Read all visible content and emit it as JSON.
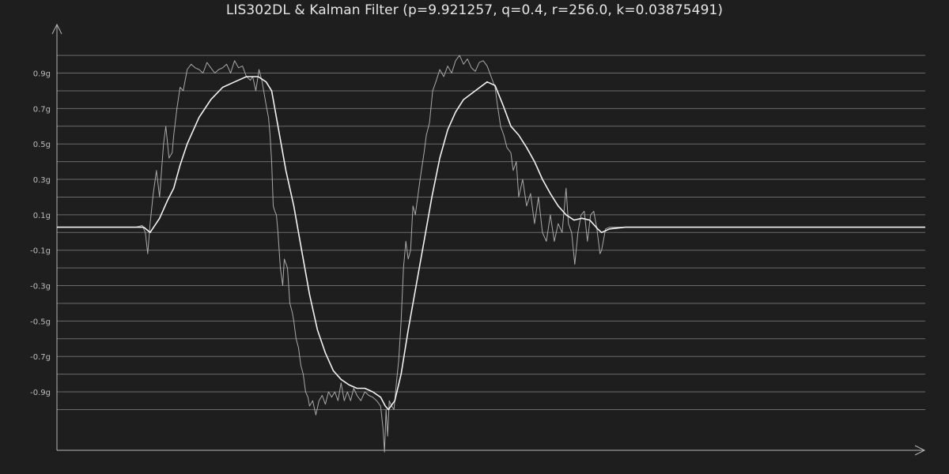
{
  "chart_data": {
    "type": "line",
    "title": "LIS302DL & Kalman Filter (p=9.921257, q=0.4, r=256.0, k=0.03875491)",
    "xlabel": "",
    "ylabel": "",
    "grid": true,
    "ylim": [
      -1.23,
      1.17
    ],
    "y_ticks": [
      {
        "value": 0.9,
        "label": "0.9g"
      },
      {
        "value": 0.7,
        "label": "0.7g"
      },
      {
        "value": 0.5,
        "label": "0.5g"
      },
      {
        "value": 0.3,
        "label": "0.3g"
      },
      {
        "value": 0.1,
        "label": "0.1g"
      },
      {
        "value": -0.1,
        "label": "-0.1g"
      },
      {
        "value": -0.3,
        "label": "-0.3g"
      },
      {
        "value": -0.5,
        "label": "-0.5g"
      },
      {
        "value": -0.7,
        "label": "-0.7g"
      },
      {
        "value": -0.9,
        "label": "-0.9g"
      }
    ],
    "gridlines": [
      1.0,
      0.9,
      0.8,
      0.7,
      0.6,
      0.5,
      0.4,
      0.3,
      0.2,
      0.1,
      0.0,
      -0.1,
      -0.2,
      -0.3,
      -0.4,
      -0.5,
      -0.6,
      -0.7,
      -0.8,
      -0.9,
      -1.0
    ],
    "x_range": [
      0,
      1100
    ],
    "series": [
      {
        "role": "raw",
        "color": "#a8a8a8",
        "points": [
          [
            0,
            0.03
          ],
          [
            100,
            0.03
          ],
          [
            108,
            0.04
          ],
          [
            112,
            0.0
          ],
          [
            115,
            -0.12
          ],
          [
            118,
            0.05
          ],
          [
            122,
            0.22
          ],
          [
            126,
            0.35
          ],
          [
            130,
            0.2
          ],
          [
            135,
            0.5
          ],
          [
            138,
            0.6
          ],
          [
            142,
            0.42
          ],
          [
            146,
            0.45
          ],
          [
            148,
            0.55
          ],
          [
            152,
            0.7
          ],
          [
            156,
            0.82
          ],
          [
            160,
            0.8
          ],
          [
            165,
            0.92
          ],
          [
            170,
            0.95
          ],
          [
            175,
            0.93
          ],
          [
            180,
            0.92
          ],
          [
            185,
            0.9
          ],
          [
            190,
            0.96
          ],
          [
            195,
            0.93
          ],
          [
            200,
            0.9
          ],
          [
            205,
            0.92
          ],
          [
            210,
            0.93
          ],
          [
            215,
            0.95
          ],
          [
            220,
            0.9
          ],
          [
            225,
            0.97
          ],
          [
            230,
            0.93
          ],
          [
            235,
            0.94
          ],
          [
            240,
            0.88
          ],
          [
            245,
            0.86
          ],
          [
            248,
            0.88
          ],
          [
            252,
            0.8
          ],
          [
            256,
            0.92
          ],
          [
            260,
            0.85
          ],
          [
            265,
            0.72
          ],
          [
            268,
            0.65
          ],
          [
            270,
            0.55
          ],
          [
            272,
            0.4
          ],
          [
            274,
            0.15
          ],
          [
            276,
            0.12
          ],
          [
            278,
            0.1
          ],
          [
            280,
            0.0
          ],
          [
            283,
            -0.2
          ],
          [
            286,
            -0.3
          ],
          [
            288,
            -0.15
          ],
          [
            292,
            -0.2
          ],
          [
            295,
            -0.4
          ],
          [
            298,
            -0.45
          ],
          [
            300,
            -0.5
          ],
          [
            303,
            -0.6
          ],
          [
            306,
            -0.65
          ],
          [
            309,
            -0.75
          ],
          [
            312,
            -0.8
          ],
          [
            315,
            -0.9
          ],
          [
            318,
            -0.93
          ],
          [
            320,
            -0.98
          ],
          [
            324,
            -0.95
          ],
          [
            328,
            -1.03
          ],
          [
            332,
            -0.95
          ],
          [
            336,
            -0.92
          ],
          [
            340,
            -0.97
          ],
          [
            344,
            -0.9
          ],
          [
            348,
            -0.93
          ],
          [
            352,
            -0.9
          ],
          [
            356,
            -0.95
          ],
          [
            360,
            -0.85
          ],
          [
            364,
            -0.95
          ],
          [
            368,
            -0.9
          ],
          [
            372,
            -0.95
          ],
          [
            376,
            -0.88
          ],
          [
            380,
            -0.92
          ],
          [
            385,
            -0.95
          ],
          [
            390,
            -0.9
          ],
          [
            395,
            -0.92
          ],
          [
            400,
            -0.93
          ],
          [
            405,
            -0.95
          ],
          [
            410,
            -0.98
          ],
          [
            413,
            -1.1
          ],
          [
            415,
            -1.24
          ],
          [
            417,
            -1.0
          ],
          [
            419,
            -1.15
          ],
          [
            421,
            -0.95
          ],
          [
            424,
            -0.98
          ],
          [
            427,
            -1.0
          ],
          [
            430,
            -0.85
          ],
          [
            433,
            -0.72
          ],
          [
            436,
            -0.5
          ],
          [
            439,
            -0.2
          ],
          [
            442,
            -0.05
          ],
          [
            445,
            -0.15
          ],
          [
            448,
            -0.1
          ],
          [
            451,
            0.15
          ],
          [
            454,
            0.1
          ],
          [
            457,
            0.2
          ],
          [
            460,
            0.3
          ],
          [
            465,
            0.45
          ],
          [
            468,
            0.55
          ],
          [
            472,
            0.62
          ],
          [
            476,
            0.8
          ],
          [
            480,
            0.85
          ],
          [
            485,
            0.92
          ],
          [
            490,
            0.88
          ],
          [
            495,
            0.94
          ],
          [
            500,
            0.9
          ],
          [
            505,
            0.97
          ],
          [
            510,
            1.0
          ],
          [
            515,
            0.95
          ],
          [
            520,
            0.98
          ],
          [
            525,
            0.93
          ],
          [
            530,
            0.91
          ],
          [
            535,
            0.96
          ],
          [
            540,
            0.97
          ],
          [
            545,
            0.94
          ],
          [
            550,
            0.88
          ],
          [
            555,
            0.82
          ],
          [
            558,
            0.72
          ],
          [
            562,
            0.6
          ],
          [
            566,
            0.55
          ],
          [
            570,
            0.48
          ],
          [
            575,
            0.45
          ],
          [
            578,
            0.35
          ],
          [
            582,
            0.4
          ],
          [
            585,
            0.2
          ],
          [
            590,
            0.3
          ],
          [
            595,
            0.15
          ],
          [
            600,
            0.22
          ],
          [
            605,
            0.05
          ],
          [
            610,
            0.2
          ],
          [
            615,
            0.0
          ],
          [
            620,
            -0.05
          ],
          [
            625,
            0.1
          ],
          [
            630,
            -0.05
          ],
          [
            635,
            0.05
          ],
          [
            640,
            0.0
          ],
          [
            645,
            0.25
          ],
          [
            648,
            0.05
          ],
          [
            652,
            0.0
          ],
          [
            656,
            -0.18
          ],
          [
            660,
            0.0
          ],
          [
            664,
            0.1
          ],
          [
            668,
            0.12
          ],
          [
            672,
            -0.05
          ],
          [
            676,
            0.1
          ],
          [
            680,
            0.12
          ],
          [
            684,
            0.02
          ],
          [
            688,
            -0.12
          ],
          [
            690,
            -0.1
          ],
          [
            695,
            0.02
          ],
          [
            700,
            0.03
          ],
          [
            750,
            0.03
          ],
          [
            800,
            0.03
          ],
          [
            850,
            0.03
          ],
          [
            900,
            0.03
          ],
          [
            950,
            0.03
          ],
          [
            1000,
            0.03
          ],
          [
            1050,
            0.03
          ],
          [
            1100,
            0.03
          ]
        ]
      },
      {
        "role": "kalman",
        "color": "#f2f2f2",
        "points": [
          [
            0,
            0.03
          ],
          [
            100,
            0.03
          ],
          [
            110,
            0.03
          ],
          [
            118,
            0.0
          ],
          [
            130,
            0.08
          ],
          [
            140,
            0.18
          ],
          [
            148,
            0.25
          ],
          [
            156,
            0.38
          ],
          [
            165,
            0.5
          ],
          [
            180,
            0.65
          ],
          [
            195,
            0.75
          ],
          [
            210,
            0.82
          ],
          [
            225,
            0.85
          ],
          [
            240,
            0.88
          ],
          [
            255,
            0.88
          ],
          [
            265,
            0.85
          ],
          [
            272,
            0.8
          ],
          [
            280,
            0.6
          ],
          [
            290,
            0.35
          ],
          [
            300,
            0.15
          ],
          [
            310,
            -0.1
          ],
          [
            320,
            -0.35
          ],
          [
            330,
            -0.55
          ],
          [
            340,
            -0.68
          ],
          [
            350,
            -0.78
          ],
          [
            360,
            -0.83
          ],
          [
            370,
            -0.86
          ],
          [
            380,
            -0.88
          ],
          [
            390,
            -0.88
          ],
          [
            400,
            -0.9
          ],
          [
            410,
            -0.93
          ],
          [
            416,
            -0.98
          ],
          [
            420,
            -1.0
          ],
          [
            428,
            -0.95
          ],
          [
            436,
            -0.8
          ],
          [
            445,
            -0.55
          ],
          [
            455,
            -0.3
          ],
          [
            465,
            -0.05
          ],
          [
            475,
            0.2
          ],
          [
            485,
            0.42
          ],
          [
            495,
            0.58
          ],
          [
            505,
            0.68
          ],
          [
            515,
            0.75
          ],
          [
            530,
            0.8
          ],
          [
            545,
            0.85
          ],
          [
            555,
            0.83
          ],
          [
            565,
            0.72
          ],
          [
            575,
            0.6
          ],
          [
            585,
            0.55
          ],
          [
            595,
            0.48
          ],
          [
            605,
            0.4
          ],
          [
            615,
            0.3
          ],
          [
            625,
            0.22
          ],
          [
            635,
            0.15
          ],
          [
            645,
            0.1
          ],
          [
            655,
            0.07
          ],
          [
            665,
            0.08
          ],
          [
            675,
            0.07
          ],
          [
            685,
            0.02
          ],
          [
            690,
            0.0
          ],
          [
            700,
            0.02
          ],
          [
            720,
            0.03
          ],
          [
            800,
            0.03
          ],
          [
            1100,
            0.03
          ]
        ]
      }
    ]
  }
}
